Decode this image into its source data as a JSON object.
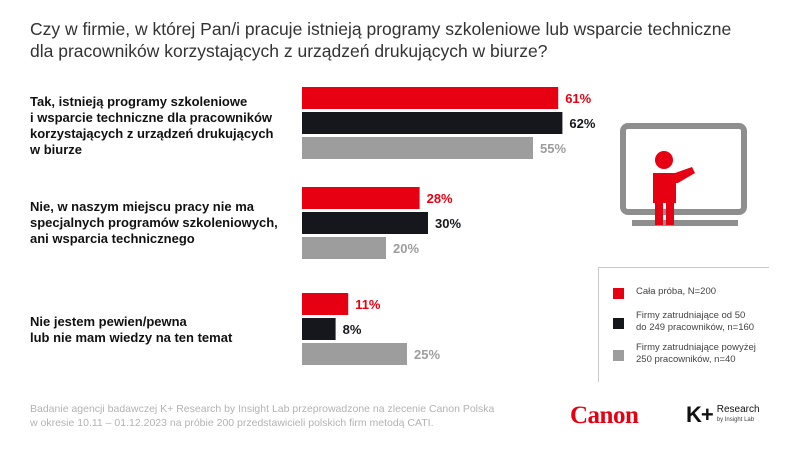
{
  "title": {
    "line1": "Czy w firmie, w której Pan/i pracuje istnieją programy szkoleniowe lub wsparcie techniczne",
    "line2": "dla pracowników korzystających z urządzeń drukujących w biurze?"
  },
  "colors": {
    "red": "#e60012",
    "black": "#16171c",
    "gray": "#9d9d9d"
  },
  "chart_data": {
    "type": "bar",
    "orientation": "horizontal",
    "categories": [
      "Tak, istnieją programy szkoleniowe i wsparcie techniczne dla pracowników korzystających z urządzeń drukujących w biurze",
      "Nie, w naszym miejscu pracy nie ma specjalnych programów szkoleniowych, ani wsparcia technicznego",
      "Nie jestem pewien/pewna lub nie mam wiedzy na ten temat"
    ],
    "category_lines": [
      [
        "Tak, istnieją programy szkoleniowe",
        "i wsparcie techniczne dla pracowników",
        "korzystających z urządzeń drukujących",
        "w biurze"
      ],
      [
        "Nie, w naszym miejscu pracy nie ma",
        "specjalnych programów szkoleniowych,",
        "ani wsparcia technicznego"
      ],
      [
        "Nie jestem pewien/pewna",
        "lub nie mam wiedzy na ten temat"
      ]
    ],
    "series": [
      {
        "name": "Cała próba, N=200",
        "color": "#e60012",
        "values": [
          61,
          28,
          11
        ]
      },
      {
        "name": "Firmy zatrudniające od 50 do 249 pracowników, n=160",
        "color": "#16171c",
        "values": [
          62,
          30,
          8
        ]
      },
      {
        "name": "Firmy zatrudniające powyżej 250 pracowników, n=40",
        "color": "#9d9d9d",
        "values": [
          55,
          20,
          25
        ]
      }
    ],
    "value_suffix": "%",
    "xlim": [
      0,
      100
    ],
    "legend_position": "bottom-right"
  },
  "legend": {
    "items": [
      {
        "lines": [
          "Cała próba, N=200"
        ]
      },
      {
        "lines": [
          "Firmy zatrudniające od 50",
          "do 249 pracowników, n=160"
        ]
      },
      {
        "lines": [
          "Firmy zatrudniające powyżej",
          "250 pracowników, n=40"
        ]
      }
    ]
  },
  "footnote": {
    "line1": "Badanie agencji badawczej K+ Research by Insight Lab przeprowadzone na zlecenie Canon Polska",
    "line2": "w okresie 10.11 – 01.12.2023 na próbie 200 przedstawicieli polskich firm metodą CATI."
  },
  "logos": {
    "canon": "Canon",
    "kplus_mark": "K+",
    "kplus_line1": "Research",
    "kplus_line2": "by Insight Lab"
  },
  "icons": {
    "presentation": "teacher-at-board-icon"
  }
}
